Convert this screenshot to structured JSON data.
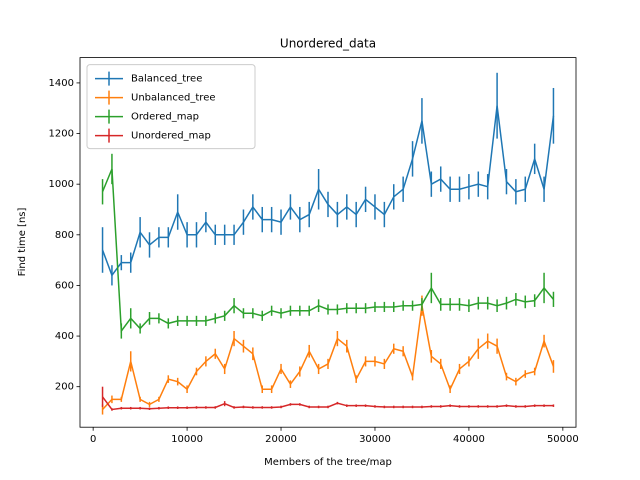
{
  "chart_data": {
    "type": "errorbar_line",
    "title": "Unordered_data",
    "xlabel": "Members of the tree/map",
    "ylabel": "Find time [ns]",
    "x": [
      1000,
      2000,
      3000,
      4000,
      5000,
      6000,
      7000,
      8000,
      9000,
      10000,
      11000,
      12000,
      13000,
      14000,
      15000,
      16000,
      17000,
      18000,
      19000,
      20000,
      21000,
      22000,
      23000,
      24000,
      25000,
      26000,
      27000,
      28000,
      29000,
      30000,
      31000,
      32000,
      33000,
      34000,
      35000,
      36000,
      37000,
      38000,
      39000,
      40000,
      41000,
      42000,
      43000,
      44000,
      45000,
      46000,
      47000,
      48000,
      49000
    ],
    "xlim": [
      -1400,
      51400
    ],
    "xticks": [
      0,
      10000,
      20000,
      30000,
      40000,
      50000
    ],
    "ylim": [
      40,
      1500
    ],
    "yticks": [
      200,
      400,
      600,
      800,
      1000,
      1200,
      1400
    ],
    "legend": "upper left",
    "series": [
      {
        "name": "Balanced_tree",
        "color": "#1f77b4",
        "values": [
          740,
          640,
          690,
          690,
          810,
          760,
          790,
          790,
          890,
          800,
          800,
          850,
          800,
          800,
          800,
          850,
          910,
          860,
          860,
          850,
          910,
          860,
          880,
          980,
          920,
          880,
          910,
          880,
          940,
          910,
          880,
          950,
          980,
          1100,
          1250,
          1000,
          1020,
          980,
          980,
          990,
          1000,
          990,
          1310,
          1010,
          970,
          980,
          1100,
          980,
          1270
        ],
        "errors": [
          90,
          40,
          30,
          40,
          60,
          50,
          40,
          40,
          70,
          50,
          50,
          40,
          40,
          40,
          40,
          50,
          50,
          50,
          50,
          50,
          50,
          50,
          50,
          80,
          50,
          50,
          50,
          50,
          50,
          50,
          50,
          50,
          50,
          70,
          90,
          50,
          50,
          50,
          50,
          50,
          50,
          50,
          130,
          50,
          50,
          50,
          60,
          50,
          110
        ]
      },
      {
        "name": "Unbalanced_tree",
        "color": "#ff7f0e",
        "values": [
          110,
          150,
          150,
          300,
          150,
          130,
          150,
          230,
          220,
          190,
          260,
          300,
          330,
          270,
          390,
          360,
          330,
          190,
          190,
          270,
          210,
          260,
          340,
          270,
          290,
          390,
          360,
          230,
          300,
          300,
          290,
          350,
          340,
          240,
          520,
          320,
          290,
          190,
          270,
          300,
          350,
          380,
          360,
          240,
          220,
          250,
          260,
          380,
          280
        ],
        "errors": [
          20,
          15,
          10,
          40,
          10,
          10,
          10,
          15,
          15,
          15,
          15,
          20,
          20,
          20,
          30,
          25,
          25,
          15,
          15,
          20,
          15,
          20,
          25,
          20,
          20,
          30,
          25,
          15,
          20,
          20,
          20,
          20,
          20,
          15,
          40,
          25,
          20,
          15,
          20,
          20,
          40,
          30,
          30,
          15,
          15,
          15,
          15,
          25,
          25
        ]
      },
      {
        "name": "Ordered_map",
        "color": "#2ca02c",
        "values": [
          970,
          1060,
          420,
          470,
          430,
          470,
          470,
          450,
          460,
          460,
          460,
          460,
          470,
          480,
          520,
          490,
          490,
          480,
          500,
          490,
          500,
          500,
          500,
          520,
          505,
          505,
          510,
          510,
          510,
          515,
          515,
          515,
          520,
          520,
          525,
          590,
          525,
          525,
          525,
          520,
          530,
          530,
          520,
          530,
          545,
          535,
          540,
          590,
          545
        ],
        "errors": [
          50,
          60,
          30,
          40,
          20,
          25,
          20,
          20,
          20,
          20,
          20,
          20,
          20,
          20,
          30,
          20,
          20,
          20,
          20,
          20,
          20,
          20,
          20,
          25,
          20,
          20,
          20,
          20,
          20,
          20,
          20,
          20,
          20,
          20,
          25,
          60,
          25,
          25,
          25,
          25,
          25,
          25,
          25,
          25,
          25,
          25,
          25,
          60,
          30
        ]
      },
      {
        "name": "Unordered_map",
        "color": "#d62728",
        "values": [
          160,
          110,
          115,
          115,
          115,
          113,
          115,
          117,
          117,
          117,
          118,
          118,
          118,
          133,
          118,
          120,
          118,
          118,
          118,
          120,
          130,
          130,
          120,
          120,
          120,
          135,
          125,
          125,
          125,
          122,
          120,
          120,
          120,
          120,
          120,
          122,
          122,
          125,
          122,
          122,
          122,
          122,
          122,
          125,
          122,
          122,
          125,
          125,
          125
        ],
        "errors": [
          40,
          5,
          5,
          5,
          5,
          5,
          5,
          5,
          5,
          5,
          5,
          5,
          5,
          10,
          5,
          5,
          5,
          5,
          5,
          5,
          5,
          5,
          5,
          5,
          5,
          5,
          5,
          5,
          5,
          5,
          5,
          5,
          5,
          5,
          5,
          5,
          5,
          5,
          5,
          5,
          5,
          5,
          5,
          5,
          5,
          5,
          5,
          5,
          5
        ]
      }
    ]
  }
}
